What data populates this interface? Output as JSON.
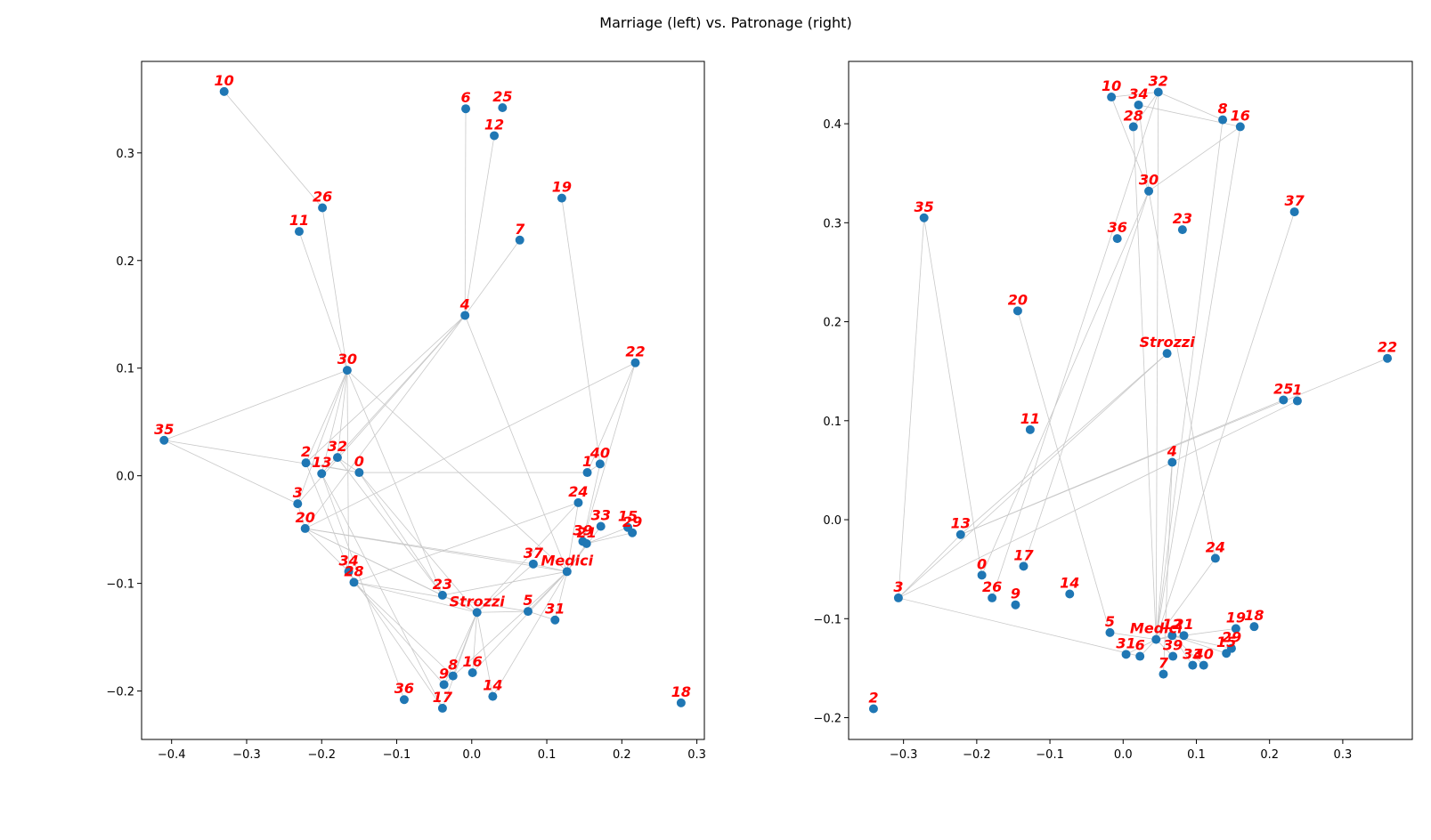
{
  "figure": {
    "suptitle": "Marriage (left) vs. Patronage (right)"
  },
  "colors": {
    "node": "#1f77b4",
    "label": "#ff0000",
    "edge": "#c8c8c8",
    "axes": "#000000"
  },
  "chart_data": [
    {
      "type": "scatter",
      "name": "Marriage",
      "grid": false,
      "legend": "none",
      "xlim": [
        -0.44,
        0.31
      ],
      "ylim": [
        -0.245,
        0.385
      ],
      "xticks": [
        -0.4,
        -0.3,
        -0.2,
        -0.1,
        0.0,
        0.1,
        0.2,
        0.3
      ],
      "xtick_labels": [
        "−0.4",
        "−0.3",
        "−0.2",
        "−0.1",
        "0.0",
        "0.1",
        "0.2",
        "0.3"
      ],
      "yticks": [
        -0.2,
        -0.1,
        0.0,
        0.1,
        0.2,
        0.3
      ],
      "ytick_labels": [
        "−0.2",
        "−0.1",
        "0.0",
        "0.1",
        "0.2",
        "0.3"
      ],
      "nodes": [
        {
          "id": "10",
          "x": -0.33,
          "y": 0.357
        },
        {
          "id": "6",
          "x": -0.008,
          "y": 0.341
        },
        {
          "id": "25",
          "x": 0.041,
          "y": 0.342
        },
        {
          "id": "12",
          "x": 0.03,
          "y": 0.316
        },
        {
          "id": "26",
          "x": -0.199,
          "y": 0.249
        },
        {
          "id": "19",
          "x": 0.12,
          "y": 0.258
        },
        {
          "id": "11",
          "x": -0.23,
          "y": 0.227
        },
        {
          "id": "7",
          "x": 0.064,
          "y": 0.219
        },
        {
          "id": "4",
          "x": -0.009,
          "y": 0.149
        },
        {
          "id": "30",
          "x": -0.166,
          "y": 0.098
        },
        {
          "id": "22",
          "x": 0.218,
          "y": 0.105
        },
        {
          "id": "35",
          "x": -0.41,
          "y": 0.033
        },
        {
          "id": "32",
          "x": -0.179,
          "y": 0.017
        },
        {
          "id": "2",
          "x": -0.221,
          "y": 0.012
        },
        {
          "id": "13",
          "x": -0.2,
          "y": 0.002
        },
        {
          "id": "0",
          "x": -0.15,
          "y": 0.003
        },
        {
          "id": "1",
          "x": 0.154,
          "y": 0.003
        },
        {
          "id": "40",
          "x": 0.171,
          "y": 0.011
        },
        {
          "id": "3",
          "x": -0.232,
          "y": -0.026
        },
        {
          "id": "24",
          "x": 0.142,
          "y": -0.025
        },
        {
          "id": "20",
          "x": -0.222,
          "y": -0.049
        },
        {
          "id": "33",
          "x": 0.172,
          "y": -0.047
        },
        {
          "id": "15",
          "x": 0.208,
          "y": -0.048
        },
        {
          "id": "29",
          "x": 0.214,
          "y": -0.053
        },
        {
          "id": "39",
          "x": 0.148,
          "y": -0.061
        },
        {
          "id": "21",
          "x": 0.153,
          "y": -0.063
        },
        {
          "id": "34",
          "x": -0.164,
          "y": -0.089
        },
        {
          "id": "28",
          "x": -0.157,
          "y": -0.099
        },
        {
          "id": "37",
          "x": 0.082,
          "y": -0.082
        },
        {
          "id": "Medici",
          "x": 0.127,
          "y": -0.089
        },
        {
          "id": "23",
          "x": -0.039,
          "y": -0.111
        },
        {
          "id": "Strozzi",
          "x": 0.007,
          "y": -0.127
        },
        {
          "id": "5",
          "x": 0.075,
          "y": -0.126
        },
        {
          "id": "31",
          "x": 0.111,
          "y": -0.134
        },
        {
          "id": "8",
          "x": -0.025,
          "y": -0.186
        },
        {
          "id": "16",
          "x": 0.001,
          "y": -0.183
        },
        {
          "id": "9",
          "x": -0.037,
          "y": -0.194
        },
        {
          "id": "14",
          "x": 0.028,
          "y": -0.205
        },
        {
          "id": "36",
          "x": -0.09,
          "y": -0.208
        },
        {
          "id": "17",
          "x": -0.039,
          "y": -0.216
        },
        {
          "id": "18",
          "x": 0.279,
          "y": -0.211
        }
      ],
      "edges": [
        [
          "10",
          "26"
        ],
        [
          "26",
          "30"
        ],
        [
          "11",
          "30"
        ],
        [
          "30",
          "35"
        ],
        [
          "30",
          "2"
        ],
        [
          "30",
          "13"
        ],
        [
          "30",
          "32"
        ],
        [
          "30",
          "23"
        ],
        [
          "30",
          "Medici"
        ],
        [
          "30",
          "34"
        ],
        [
          "30",
          "3"
        ],
        [
          "6",
          "4"
        ],
        [
          "12",
          "4"
        ],
        [
          "7",
          "4"
        ],
        [
          "4",
          "2"
        ],
        [
          "4",
          "13"
        ],
        [
          "4",
          "3"
        ],
        [
          "4",
          "20"
        ],
        [
          "4",
          "Medici"
        ],
        [
          "19",
          "40"
        ],
        [
          "22",
          "39"
        ],
        [
          "22",
          "1"
        ],
        [
          "22",
          "20"
        ],
        [
          "35",
          "3"
        ],
        [
          "35",
          "0"
        ],
        [
          "0",
          "1"
        ],
        [
          "0",
          "23"
        ],
        [
          "0",
          "Strozzi"
        ],
        [
          "32",
          "23"
        ],
        [
          "2",
          "28"
        ],
        [
          "13",
          "36"
        ],
        [
          "13",
          "17"
        ],
        [
          "3",
          "20"
        ],
        [
          "20",
          "34"
        ],
        [
          "20",
          "37"
        ],
        [
          "20",
          "23"
        ],
        [
          "20",
          "Strozzi"
        ],
        [
          "28",
          "Strozzi"
        ],
        [
          "28",
          "9"
        ],
        [
          "28",
          "8"
        ],
        [
          "28",
          "5"
        ],
        [
          "Medici",
          "23"
        ],
        [
          "Medici",
          "37"
        ],
        [
          "Medici",
          "24"
        ],
        [
          "Medici",
          "21"
        ],
        [
          "Medici",
          "33"
        ],
        [
          "Medici",
          "5"
        ],
        [
          "Medici",
          "31"
        ],
        [
          "Medici",
          "9"
        ],
        [
          "Medici",
          "16"
        ],
        [
          "Medici",
          "14"
        ],
        [
          "Medici",
          "20"
        ],
        [
          "23",
          "Strozzi"
        ],
        [
          "Strozzi",
          "5"
        ],
        [
          "Strozzi",
          "9"
        ],
        [
          "Strozzi",
          "16"
        ],
        [
          "Strozzi",
          "14"
        ],
        [
          "Strozzi",
          "8"
        ],
        [
          "Strozzi",
          "17"
        ],
        [
          "5",
          "31"
        ],
        [
          "24",
          "28"
        ],
        [
          "24",
          "Strozzi"
        ],
        [
          "21",
          "15"
        ],
        [
          "21",
          "29"
        ],
        [
          "40",
          "1"
        ],
        [
          "40",
          "39"
        ],
        [
          "34",
          "17"
        ],
        [
          "32",
          "0"
        ],
        [
          "2",
          "0"
        ],
        [
          "37",
          "Strozzi"
        ]
      ]
    },
    {
      "type": "scatter",
      "name": "Patronage",
      "grid": false,
      "legend": "none",
      "xlim": [
        -0.375,
        0.395
      ],
      "ylim": [
        -0.222,
        0.463
      ],
      "xticks": [
        -0.3,
        -0.2,
        -0.1,
        0.0,
        0.1,
        0.2,
        0.3
      ],
      "xtick_labels": [
        "−0.3",
        "−0.2",
        "−0.1",
        "0.0",
        "0.1",
        "0.2",
        "0.3"
      ],
      "yticks": [
        -0.2,
        -0.1,
        0.0,
        0.1,
        0.2,
        0.3,
        0.4
      ],
      "ytick_labels": [
        "−0.2",
        "−0.1",
        "0.0",
        "0.1",
        "0.2",
        "0.3",
        "0.4"
      ],
      "nodes": [
        {
          "id": "10",
          "x": -0.016,
          "y": 0.427
        },
        {
          "id": "34",
          "x": 0.021,
          "y": 0.419
        },
        {
          "id": "32",
          "x": 0.048,
          "y": 0.432
        },
        {
          "id": "28",
          "x": 0.014,
          "y": 0.397
        },
        {
          "id": "8",
          "x": 0.136,
          "y": 0.404
        },
        {
          "id": "16",
          "x": 0.16,
          "y": 0.397
        },
        {
          "id": "30",
          "x": 0.035,
          "y": 0.332
        },
        {
          "id": "35",
          "x": -0.272,
          "y": 0.305
        },
        {
          "id": "37",
          "x": 0.234,
          "y": 0.311
        },
        {
          "id": "36",
          "x": -0.008,
          "y": 0.284
        },
        {
          "id": "23",
          "x": 0.081,
          "y": 0.293
        },
        {
          "id": "20",
          "x": -0.144,
          "y": 0.211
        },
        {
          "id": "Strozzi",
          "x": 0.06,
          "y": 0.168
        },
        {
          "id": "22",
          "x": 0.361,
          "y": 0.163
        },
        {
          "id": "25",
          "x": 0.219,
          "y": 0.121
        },
        {
          "id": "1",
          "x": 0.238,
          "y": 0.12
        },
        {
          "id": "11",
          "x": -0.127,
          "y": 0.091
        },
        {
          "id": "4",
          "x": 0.067,
          "y": 0.058
        },
        {
          "id": "13",
          "x": -0.222,
          "y": -0.015
        },
        {
          "id": "24",
          "x": 0.126,
          "y": -0.039
        },
        {
          "id": "0",
          "x": -0.193,
          "y": -0.056
        },
        {
          "id": "17",
          "x": -0.136,
          "y": -0.047
        },
        {
          "id": "14",
          "x": -0.073,
          "y": -0.075
        },
        {
          "id": "3",
          "x": -0.307,
          "y": -0.079
        },
        {
          "id": "26",
          "x": -0.179,
          "y": -0.079
        },
        {
          "id": "9",
          "x": -0.147,
          "y": -0.086
        },
        {
          "id": "19",
          "x": 0.154,
          "y": -0.11
        },
        {
          "id": "18",
          "x": 0.179,
          "y": -0.108
        },
        {
          "id": "5",
          "x": -0.018,
          "y": -0.114
        },
        {
          "id": "Medici",
          "x": 0.045,
          "y": -0.121
        },
        {
          "id": "12",
          "x": 0.067,
          "y": -0.117
        },
        {
          "id": "21",
          "x": 0.083,
          "y": -0.117
        },
        {
          "id": "29",
          "x": 0.148,
          "y": -0.13
        },
        {
          "id": "15",
          "x": 0.141,
          "y": -0.135
        },
        {
          "id": "31",
          "x": 0.004,
          "y": -0.136
        },
        {
          "id": "6",
          "x": 0.023,
          "y": -0.138
        },
        {
          "id": "39",
          "x": 0.068,
          "y": -0.138
        },
        {
          "id": "33",
          "x": 0.095,
          "y": -0.147
        },
        {
          "id": "40",
          "x": 0.11,
          "y": -0.147
        },
        {
          "id": "7",
          "x": 0.055,
          "y": -0.156
        },
        {
          "id": "2",
          "x": -0.341,
          "y": -0.191
        }
      ],
      "edges": [
        [
          "10",
          "32"
        ],
        [
          "10",
          "30"
        ],
        [
          "34",
          "30"
        ],
        [
          "34",
          "16"
        ],
        [
          "32",
          "28"
        ],
        [
          "32",
          "8"
        ],
        [
          "32",
          "Medici"
        ],
        [
          "32",
          "26"
        ],
        [
          "28",
          "Medici"
        ],
        [
          "8",
          "Medici"
        ],
        [
          "16",
          "30"
        ],
        [
          "16",
          "Medici"
        ],
        [
          "30",
          "24"
        ],
        [
          "30",
          "0"
        ],
        [
          "30",
          "17"
        ],
        [
          "35",
          "3"
        ],
        [
          "35",
          "0"
        ],
        [
          "37",
          "Medici"
        ],
        [
          "20",
          "5"
        ],
        [
          "Strozzi",
          "3"
        ],
        [
          "Strozzi",
          "13"
        ],
        [
          "22",
          "13"
        ],
        [
          "25",
          "13"
        ],
        [
          "1",
          "4"
        ],
        [
          "4",
          "3"
        ],
        [
          "4",
          "Medici"
        ],
        [
          "4",
          "7"
        ],
        [
          "3",
          "13"
        ],
        [
          "3",
          "6"
        ],
        [
          "5",
          "Medici"
        ],
        [
          "Medici",
          "12"
        ],
        [
          "Medici",
          "21"
        ],
        [
          "Medici",
          "39"
        ],
        [
          "Medici",
          "31"
        ],
        [
          "Medici",
          "6"
        ],
        [
          "Medici",
          "24"
        ],
        [
          "21",
          "19"
        ],
        [
          "12",
          "29"
        ],
        [
          "12",
          "15"
        ],
        [
          "12",
          "40"
        ],
        [
          "12",
          "33"
        ]
      ]
    }
  ]
}
